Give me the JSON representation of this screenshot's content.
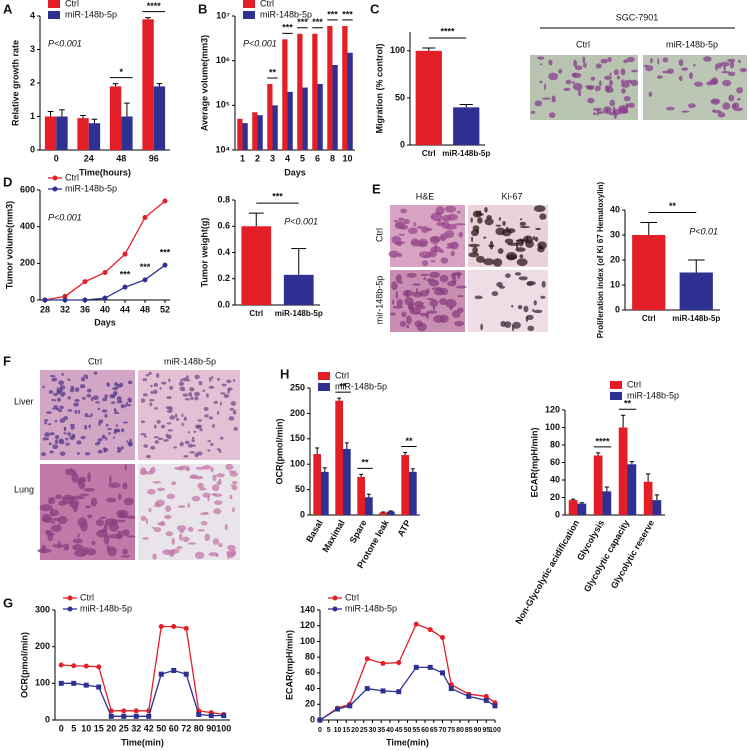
{
  "chart_data": [
    {
      "type": "bar",
      "panel": "A",
      "ylabel": "Relative growth rate",
      "xlabel": "Time(hours)",
      "categories": [
        "0",
        "24",
        "48",
        "96"
      ],
      "series": [
        {
          "name": "Ctrl",
          "color": "#e41e26",
          "values": [
            1.0,
            0.95,
            1.9,
            3.9
          ],
          "errors": [
            0.15,
            0.08,
            0.08,
            0.05
          ]
        },
        {
          "name": "miR-148b-5p",
          "color": "#2e3192",
          "values": [
            1.0,
            0.8,
            1.0,
            1.9
          ],
          "errors": [
            0.2,
            0.12,
            0.4,
            0.08
          ]
        }
      ],
      "ylim": [
        0,
        4
      ],
      "yticks": [
        0,
        1,
        2,
        3,
        4
      ],
      "legend": "top-left",
      "p_value": "P<0.001",
      "significance": [
        {
          "text": "*",
          "category": "48"
        },
        {
          "text": "****",
          "category": "96"
        }
      ]
    },
    {
      "type": "bar",
      "panel": "B",
      "ylabel": "Average volume(mm3)",
      "xlabel": "Days",
      "log": true,
      "categories": [
        "1",
        "2",
        "3",
        "4",
        "5",
        "6",
        "8",
        "10"
      ],
      "series": [
        {
          "name": "Ctrl",
          "color": "#e41e26",
          "values": [
            50000,
            70000,
            300000,
            3000000,
            4000000,
            4000000,
            6000000,
            6000000
          ]
        },
        {
          "name": "miR-148b-5p",
          "color": "#2e3192",
          "values": [
            40000,
            60000,
            100000,
            200000,
            250000,
            300000,
            800000,
            1500000
          ]
        }
      ],
      "ylim": [
        10000,
        10000000
      ],
      "yticks": [
        {
          "value": 10000,
          "label": "10⁴"
        },
        {
          "value": 100000,
          "label": "10⁵"
        },
        {
          "value": 1000000,
          "label": "10⁶"
        },
        {
          "value": 10000000,
          "label": "10⁷"
        }
      ],
      "legend": "top-left",
      "p_value": "P<0.001",
      "significance": [
        {
          "text": "**",
          "category": "3"
        },
        {
          "text": "***",
          "category": "4"
        },
        {
          "text": "***",
          "category": "5"
        },
        {
          "text": "***",
          "category": "6"
        },
        {
          "text": "***",
          "category": "8"
        },
        {
          "text": "***",
          "category": "10"
        }
      ]
    },
    {
      "type": "bar",
      "panel": "C",
      "ylabel": "Migration (% control)",
      "categories": [
        "Ctrl",
        "miR-148b-5p"
      ],
      "values": [
        100,
        40
      ],
      "errors": [
        3,
        3
      ],
      "colors": [
        "#e41e26",
        "#2e3192"
      ],
      "ylim": [
        0,
        120
      ],
      "yticks": [
        0,
        50,
        100
      ],
      "significance": [
        {
          "text": "****"
        }
      ]
    },
    {
      "type": "line",
      "panel": "D",
      "ylabel": "Tumor volume(mm3)",
      "xlabel": "Days",
      "x": [
        28,
        32,
        36,
        40,
        44,
        48,
        52
      ],
      "series": [
        {
          "name": "Ctrl",
          "color": "#e41e26",
          "marker": "circle",
          "values": [
            0,
            20,
            100,
            150,
            250,
            450,
            540
          ]
        },
        {
          "name": "miR-148b-5p",
          "color": "#2e3192",
          "marker": "circle",
          "values": [
            0,
            0,
            0,
            10,
            70,
            110,
            190
          ]
        }
      ],
      "xlim": [
        27,
        53
      ],
      "xticks": [
        28,
        32,
        36,
        40,
        44,
        48,
        52
      ],
      "ylim": [
        0,
        600
      ],
      "yticks": [
        0,
        200,
        400,
        600
      ],
      "legend": "top-left",
      "p_value": "P<0.001",
      "significance": [
        {
          "text": "***",
          "x": 44
        },
        {
          "text": "***",
          "x": 48
        },
        {
          "text": "***",
          "x": 52
        }
      ]
    },
    {
      "type": "bar",
      "ylabel": "Tumor weight(g)",
      "categories": [
        "Ctrl",
        "miR-148b-5p"
      ],
      "values": [
        0.6,
        0.23
      ],
      "errors": [
        0.1,
        0.2
      ],
      "colors": [
        "#e41e26",
        "#2e3192"
      ],
      "ylim": [
        0,
        0.8
      ],
      "yticks": [
        {
          "value": 0,
          "label": "0.0"
        },
        0.2,
        0.4,
        0.6,
        0.8
      ],
      "p_value": "P<0.001",
      "significance": [
        {
          "text": "***"
        }
      ]
    },
    {
      "type": "bar",
      "ylabel": "Proliferation index (of Ki 67 Hematoxylin)",
      "categories": [
        "Ctrl",
        "miR-148b-5p"
      ],
      "values": [
        30,
        15
      ],
      "errors": [
        5,
        5
      ],
      "colors": [
        "#e41e26",
        "#2e3192"
      ],
      "ylim": [
        0,
        40
      ],
      "yticks": [
        0,
        10,
        20,
        30,
        40
      ],
      "p_value": "P<0.01",
      "significance": [
        {
          "text": "**"
        }
      ]
    },
    {
      "type": "bar",
      "panel": "H",
      "ylabel": "OCR(pmol/min)",
      "rotated_labels": true,
      "categories": [
        "Basal",
        "Maximal",
        "Spare",
        "Protone leak",
        "ATP"
      ],
      "series": [
        {
          "name": "Ctrl",
          "color": "#e41e26",
          "values": [
            120,
            225,
            75,
            5,
            118
          ],
          "errors": [
            12,
            5,
            5,
            1,
            5
          ]
        },
        {
          "name": "miR-148b-5p",
          "color": "#2e3192",
          "values": [
            85,
            130,
            35,
            7,
            85
          ],
          "errors": [
            8,
            12,
            6,
            1,
            6
          ]
        }
      ],
      "ylim": [
        0,
        250
      ],
      "yticks": [
        0,
        50,
        100,
        150,
        200,
        250
      ],
      "legend": "top-left",
      "significance": [
        {
          "text": "**",
          "category": "Maximal"
        },
        {
          "text": "**",
          "category": "Spare"
        },
        {
          "text": "**",
          "category": "ATP"
        }
      ]
    },
    {
      "type": "bar",
      "ylabel": "ECAR(mpH/min)",
      "rotated_labels": true,
      "categories": [
        "Non-Glycolytic acidification",
        "Glycolysis",
        "Glycolytic capacity",
        "Glycolytic reserve"
      ],
      "series": [
        {
          "name": "Ctrl",
          "color": "#e41e26",
          "values": [
            17,
            68,
            100,
            38
          ],
          "errors": [
            1,
            3,
            14,
            9
          ]
        },
        {
          "name": "miR-148b-5p",
          "color": "#2e3192",
          "values": [
            13,
            27,
            58,
            17
          ],
          "errors": [
            1,
            5,
            3,
            6
          ]
        }
      ],
      "ylim": [
        0,
        120
      ],
      "yticks": [
        0,
        20,
        40,
        60,
        80,
        100,
        120
      ],
      "legend": "top-right",
      "significance": [
        {
          "text": "****",
          "category": "Glycolysis"
        },
        {
          "text": "**",
          "category": "Glycolytic capacity"
        }
      ]
    },
    {
      "type": "line",
      "panel": "G",
      "ylabel": "OCR(pmol/min)",
      "xlabel": "Time(min)",
      "categories": [
        "0",
        "5",
        "10",
        "15",
        "20",
        "25",
        "32",
        "42",
        "50",
        "60",
        "72",
        "80",
        "90",
        "100"
      ],
      "series": [
        {
          "name": "Ctrl",
          "color": "#e41e26",
          "marker": "circle",
          "values": [
            150,
            148,
            147,
            145,
            25,
            25,
            25,
            25,
            255,
            255,
            250,
            25,
            20,
            15
          ]
        },
        {
          "name": "miR-148b-5p",
          "color": "#2e3192",
          "marker": "square",
          "values": [
            100,
            100,
            95,
            90,
            10,
            10,
            10,
            10,
            125,
            135,
            125,
            15,
            12,
            12
          ]
        }
      ],
      "ylim": [
        0,
        300
      ],
      "yticks": [
        0,
        100,
        200,
        300
      ],
      "legend": "top-left"
    },
    {
      "type": "line",
      "ylabel": "ECAR(mpH/min)",
      "xlabel": "Time(min)",
      "x": [
        0,
        10,
        17,
        27,
        36,
        45,
        55,
        63,
        70,
        75,
        85,
        95,
        100
      ],
      "series": [
        {
          "name": "Ctrl",
          "color": "#e41e26",
          "marker": "circle",
          "values": [
            0,
            15,
            20,
            78,
            72,
            73,
            122,
            115,
            105,
            45,
            33,
            30,
            22
          ]
        },
        {
          "name": "miR-148b-5p",
          "color": "#2e3192",
          "marker": "square",
          "values": [
            0,
            14,
            18,
            40,
            37,
            36,
            67,
            67,
            60,
            40,
            30,
            25,
            18
          ]
        }
      ],
      "xlim": [
        0,
        100
      ],
      "xticks": [
        0,
        5,
        10,
        15,
        20,
        25,
        30,
        35,
        40,
        45,
        50,
        55,
        60,
        65,
        70,
        75,
        80,
        85,
        90,
        95,
        100
      ],
      "ylim": [
        0,
        140
      ],
      "yticks": [
        0,
        20,
        40,
        60,
        80,
        100,
        120,
        140
      ],
      "legend": "top-left"
    }
  ],
  "images": [
    {
      "title": "SGC-7901",
      "columns": [
        "Ctrl",
        "miR-148b-5p"
      ]
    },
    {
      "panel": "E",
      "columns": [
        "H&E",
        "Ki-67"
      ],
      "rows": [
        "Ctrl",
        "mir-148b-5p"
      ]
    },
    {
      "panel": "F",
      "columns": [
        "Ctrl",
        "miR-148b-5p"
      ],
      "rows": [
        "Liver",
        "Lung"
      ]
    }
  ]
}
